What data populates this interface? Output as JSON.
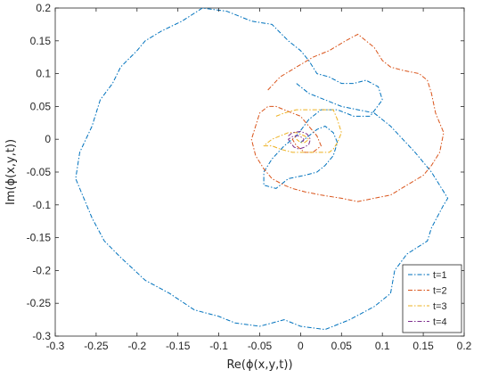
{
  "chart_data": {
    "type": "line",
    "title": "",
    "xlabel": "Re(ϕ(x,y,t))",
    "ylabel": "Im(ϕ(x,y,t))",
    "xlim": [
      -0.3,
      0.2
    ],
    "ylim": [
      -0.3,
      0.2
    ],
    "xticks": [
      -0.3,
      -0.25,
      -0.2,
      -0.15,
      -0.1,
      -0.05,
      0,
      0.05,
      0.1,
      0.15,
      0.2
    ],
    "yticks": [
      -0.3,
      -0.25,
      -0.2,
      -0.15,
      -0.1,
      -0.05,
      0,
      0.05,
      0.1,
      0.15,
      0.2
    ],
    "xtick_labels": [
      "-0.3",
      "-0.25",
      "-0.2",
      "-0.15",
      "-0.1",
      "-0.05",
      "0",
      "0.05",
      "0.1",
      "0.15",
      "0.2"
    ],
    "ytick_labels": [
      "-0.3",
      "-0.25",
      "-0.2",
      "-0.15",
      "-0.1",
      "-0.05",
      "0",
      "0.05",
      "0.1",
      "0.15",
      "0.2"
    ],
    "grid": false,
    "legend_position": "bottom-right",
    "line_style": "dash-dot",
    "series": [
      {
        "name": "t=1",
        "color": "#0072BD",
        "x": [
          -0.005,
          0.01,
          0.03,
          0.05,
          0.07,
          0.09,
          0.11,
          0.125,
          0.14,
          0.16,
          0.18,
          0.175,
          0.16,
          0.155,
          0.13,
          0.115,
          0.11,
          0.09,
          0.06,
          0.03,
          0.0,
          -0.02,
          -0.05,
          -0.08,
          -0.1,
          -0.13,
          -0.16,
          -0.19,
          -0.22,
          -0.24,
          -0.255,
          -0.265,
          -0.275,
          -0.27,
          -0.255,
          -0.245,
          -0.23,
          -0.22,
          -0.2,
          -0.19,
          -0.17,
          -0.145,
          -0.12,
          -0.09,
          -0.06,
          -0.035,
          -0.015,
          0.0,
          0.01,
          0.02,
          0.035,
          0.05,
          0.065,
          0.08,
          0.095,
          0.1,
          0.085,
          0.065,
          0.045,
          0.025,
          0.01,
          -0.005,
          -0.02,
          -0.035,
          -0.045,
          -0.045,
          -0.03,
          -0.015,
          0.005,
          0.02,
          0.03,
          0.04,
          0.045,
          0.04,
          0.03,
          0.02,
          0.01,
          0.0
        ],
        "y": [
          0.085,
          0.07,
          0.06,
          0.05,
          0.045,
          0.04,
          0.02,
          0.0,
          -0.02,
          -0.05,
          -0.09,
          -0.1,
          -0.135,
          -0.155,
          -0.175,
          -0.2,
          -0.235,
          -0.255,
          -0.275,
          -0.29,
          -0.285,
          -0.275,
          -0.285,
          -0.28,
          -0.27,
          -0.26,
          -0.235,
          -0.215,
          -0.18,
          -0.155,
          -0.12,
          -0.09,
          -0.06,
          -0.02,
          0.02,
          0.06,
          0.085,
          0.11,
          0.135,
          0.15,
          0.165,
          0.18,
          0.2,
          0.195,
          0.18,
          0.175,
          0.15,
          0.135,
          0.12,
          0.1,
          0.095,
          0.085,
          0.085,
          0.09,
          0.08,
          0.06,
          0.035,
          0.035,
          0.045,
          0.045,
          0.03,
          0.005,
          -0.01,
          -0.03,
          -0.05,
          -0.07,
          -0.075,
          -0.06,
          -0.055,
          -0.05,
          -0.04,
          -0.025,
          -0.005,
          0.01,
          0.02,
          0.015,
          0.005,
          -0.005
        ]
      },
      {
        "name": "t=2",
        "color": "#D95319",
        "x": [
          -0.04,
          -0.025,
          -0.005,
          0.015,
          0.035,
          0.055,
          0.07,
          0.09,
          0.1,
          0.11,
          0.125,
          0.145,
          0.155,
          0.16,
          0.165,
          0.175,
          0.17,
          0.16,
          0.15,
          0.13,
          0.11,
          0.09,
          0.07,
          0.05,
          0.025,
          0.005,
          -0.01,
          -0.02,
          -0.035,
          -0.045,
          -0.055,
          -0.06,
          -0.055,
          -0.05,
          -0.04,
          -0.03,
          -0.02,
          -0.01,
          0.0,
          0.01,
          0.02,
          0.025,
          0.015,
          0.005,
          -0.005,
          -0.01,
          -0.005
        ],
        "y": [
          0.075,
          0.095,
          0.11,
          0.125,
          0.135,
          0.15,
          0.16,
          0.14,
          0.12,
          0.11,
          0.105,
          0.1,
          0.09,
          0.07,
          0.04,
          0.01,
          -0.02,
          -0.04,
          -0.055,
          -0.07,
          -0.085,
          -0.09,
          -0.095,
          -0.09,
          -0.085,
          -0.08,
          -0.075,
          -0.07,
          -0.06,
          -0.045,
          -0.025,
          0.0,
          0.02,
          0.04,
          0.05,
          0.05,
          0.045,
          0.04,
          0.035,
          0.02,
          0.005,
          -0.01,
          -0.02,
          -0.02,
          -0.01,
          0.0,
          0.005
        ]
      },
      {
        "name": "t=3",
        "color": "#EDB120",
        "x": [
          -0.03,
          -0.02,
          -0.005,
          0.01,
          0.025,
          0.04,
          0.045,
          0.05,
          0.045,
          0.04,
          0.035,
          0.02,
          0.005,
          -0.01,
          -0.025,
          -0.035,
          -0.045,
          -0.035,
          -0.025,
          -0.015,
          -0.005,
          0.005,
          0.01,
          0.005,
          0.0,
          -0.005
        ],
        "y": [
          0.035,
          0.04,
          0.045,
          0.045,
          0.045,
          0.045,
          0.03,
          0.01,
          -0.005,
          -0.015,
          -0.02,
          -0.02,
          -0.02,
          -0.02,
          -0.015,
          -0.01,
          -0.01,
          0.0,
          0.005,
          0.01,
          0.01,
          0.005,
          0.0,
          -0.005,
          -0.005,
          0.0
        ]
      },
      {
        "name": "t=4",
        "color": "#7E2F8E",
        "x": [
          -0.015,
          -0.01,
          0.0,
          0.008,
          0.012,
          0.01,
          0.005,
          -0.002,
          -0.008,
          -0.012,
          -0.015,
          -0.01,
          -0.005,
          0.0,
          0.004,
          0.003,
          0.0
        ],
        "y": [
          0.005,
          0.01,
          0.012,
          0.008,
          0.0,
          -0.008,
          -0.012,
          -0.015,
          -0.012,
          -0.006,
          0.0,
          0.004,
          0.006,
          0.004,
          0.0,
          -0.003,
          -0.002
        ]
      }
    ]
  }
}
